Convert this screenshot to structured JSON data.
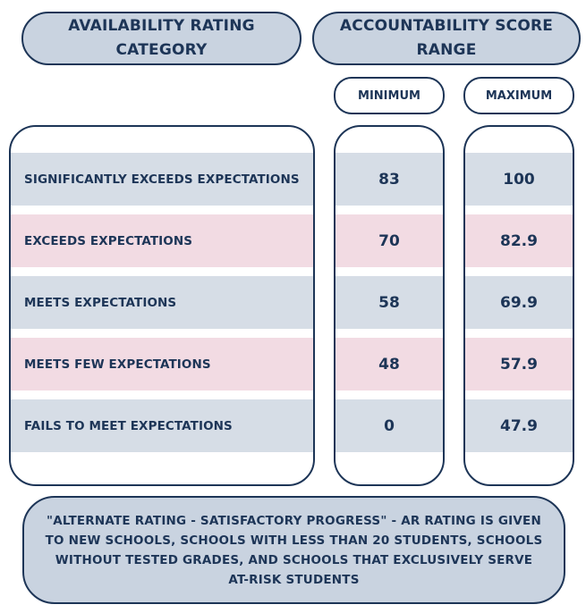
{
  "header": {
    "rating_category_title": "AVAILABILITY RATING CATEGORY",
    "score_range_title": "ACCOUNTABILITY SCORE RANGE",
    "minimum_label": "MINIMUM",
    "maximum_label": "MAXIMUM"
  },
  "rows": [
    {
      "category": "SIGNIFICANTLY EXCEEDS EXPECTATIONS",
      "minimum": "83",
      "maximum": "100",
      "band_color": "#d6dde6"
    },
    {
      "category": "EXCEEDS EXPECTATIONS",
      "minimum": "70",
      "maximum": "82.9",
      "band_color": "#f2dbe3"
    },
    {
      "category": "MEETS EXPECTATIONS",
      "minimum": "58",
      "maximum": "69.9",
      "band_color": "#d6dde6"
    },
    {
      "category": "MEETS FEW EXPECTATIONS",
      "minimum": "48",
      "maximum": "57.9",
      "band_color": "#f2dbe3"
    },
    {
      "category": "FAILS TO MEET EXPECTATIONS",
      "minimum": "0",
      "maximum": "47.9",
      "band_color": "#d6dde6"
    }
  ],
  "note": "\"ALTERNATE RATING - SATISFACTORY PROGRESS\" - AR RATING IS GIVEN TO NEW SCHOOLS, SCHOOLS WITH LESS THAN 20 STUDENTS, SCHOOLS WITHOUT TESTED GRADES, AND SCHOOLS THAT EXCLUSIVELY SERVE AT-RISK STUDENTS",
  "colors": {
    "navy": "#1d3557",
    "header_fill": "#c9d3e0",
    "blue_band": "#d6dde6",
    "pink_band": "#f2dbe3"
  }
}
